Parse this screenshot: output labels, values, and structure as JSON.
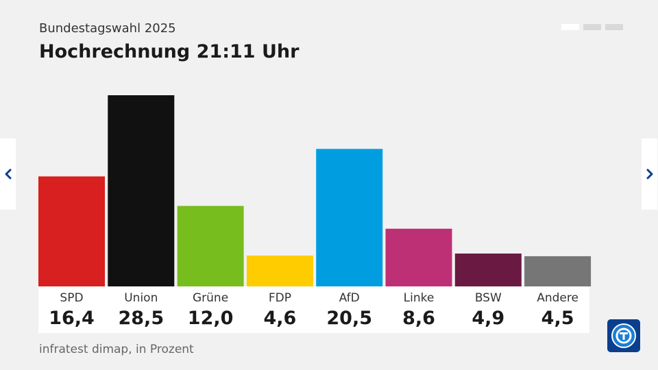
{
  "header": {
    "subtitle": "Bundestagswahl 2025",
    "title": "Hochrechnung 21:11 Uhr"
  },
  "pagination": {
    "count": 3,
    "active_index": 0
  },
  "nav": {
    "prev_icon": "chevron-left-icon",
    "next_icon": "chevron-right-icon"
  },
  "footer": {
    "source": "infratest dimap, in Prozent"
  },
  "logo": {
    "icon": "tagesschau-logo-icon"
  },
  "colors": {
    "background": "#f1f1f1",
    "nav_icon": "#0b3f8c"
  },
  "chart_data": {
    "type": "bar",
    "categories": [
      "SPD",
      "Union",
      "Grüne",
      "FDP",
      "AfD",
      "Linke",
      "BSW",
      "Andere"
    ],
    "values": [
      16.4,
      28.5,
      12.0,
      4.6,
      20.5,
      8.6,
      4.9,
      4.5
    ],
    "value_labels": [
      "16,4",
      "28,5",
      "12,0",
      "4,6",
      "20,5",
      "8,6",
      "4,9",
      "4,5"
    ],
    "colors": [
      "#d7201f",
      "#111111",
      "#77bd1e",
      "#ffcc00",
      "#009ee0",
      "#be3075",
      "#6a1a42",
      "#767676"
    ],
    "title": "Hochrechnung 21:11 Uhr",
    "xlabel": "",
    "ylabel": "",
    "ylim": [
      0,
      28.5
    ],
    "grid": false,
    "legend": "none"
  }
}
